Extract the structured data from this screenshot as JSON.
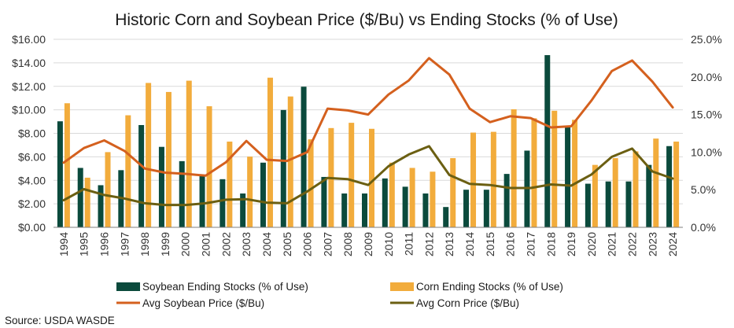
{
  "source": "Source: USDA WASDE",
  "colors": {
    "soy_stocks": "#0b4a3c",
    "corn_stocks": "#f2ac3c",
    "soy_price": "#d4601e",
    "corn_price": "#6b5f12",
    "grid": "#d9d9d9",
    "axis": "#7f7f7f"
  },
  "chart_data": {
    "type": "bar",
    "combo": "clustered bars on right axis with lines on left axis",
    "title": "Historic Corn and Soybean Price ($/Bu) vs Ending Stocks (% of Use)",
    "categories": [
      "1994",
      "1995",
      "1996",
      "1997",
      "1998",
      "1999",
      "2000",
      "2001",
      "2002",
      "2003",
      "2004",
      "2005",
      "2006",
      "2007",
      "2008",
      "2009",
      "2010",
      "2011",
      "2012",
      "2013",
      "2014",
      "2015",
      "2016",
      "2017",
      "2018",
      "2019",
      "2020",
      "2021",
      "2022",
      "2023",
      "2024"
    ],
    "left_axis": {
      "ylim": [
        0,
        16
      ],
      "ticks": [
        "$0.00",
        "$2.00",
        "$4.00",
        "$6.00",
        "$8.00",
        "$10.00",
        "$12.00",
        "$14.00",
        "$16.00"
      ],
      "tick_values": [
        0,
        2,
        4,
        6,
        8,
        10,
        12,
        14,
        16
      ]
    },
    "right_axis": {
      "ylim": [
        0,
        25
      ],
      "ticks": [
        "0.0%",
        "5.0%",
        "10.0%",
        "15.0%",
        "20.0%",
        "25.0%"
      ],
      "tick_values": [
        0,
        5,
        10,
        15,
        20,
        25
      ]
    },
    "grid": true,
    "legend_position": "bottom",
    "series": [
      {
        "name": "Soybean Ending Stocks (% of Use)",
        "type": "bar",
        "axis": "right",
        "color_key": "soy_stocks",
        "values": [
          14.1,
          7.9,
          5.6,
          7.6,
          13.6,
          10.7,
          8.8,
          6.9,
          6.4,
          4.5,
          8.6,
          15.6,
          18.7,
          6.7,
          4.5,
          4.5,
          6.5,
          5.4,
          4.5,
          2.7,
          5.0,
          5.0,
          7.1,
          10.2,
          22.9,
          13.3,
          5.8,
          6.1,
          6.1,
          8.3,
          10.8
        ]
      },
      {
        "name": "Corn Ending Stocks (% of Use)",
        "type": "bar",
        "axis": "right",
        "color_key": "corn_stocks",
        "values": [
          16.5,
          6.6,
          10.0,
          14.9,
          19.2,
          18.0,
          19.5,
          16.1,
          11.4,
          9.4,
          19.9,
          17.4,
          11.7,
          13.2,
          13.9,
          13.1,
          8.6,
          7.9,
          7.4,
          9.2,
          12.6,
          12.7,
          15.7,
          14.5,
          15.5,
          14.3,
          8.3,
          9.2,
          10.1,
          11.8,
          11.4
        ]
      },
      {
        "name": "Avg Soybean Price ($/Bu)",
        "type": "line",
        "axis": "left",
        "color_key": "soy_price",
        "values": [
          5.5,
          6.75,
          7.4,
          6.5,
          5.0,
          4.65,
          4.55,
          4.4,
          5.55,
          7.35,
          5.75,
          5.65,
          6.4,
          10.1,
          9.95,
          9.6,
          11.3,
          12.5,
          14.4,
          13.0,
          10.1,
          8.95,
          9.45,
          9.3,
          8.5,
          8.6,
          10.8,
          13.3,
          14.2,
          12.4,
          10.2
        ]
      },
      {
        "name": "Avg Corn Price ($/Bu)",
        "type": "line",
        "axis": "left",
        "color_key": "corn_price",
        "values": [
          2.3,
          3.25,
          2.75,
          2.45,
          2.05,
          1.9,
          1.9,
          2.05,
          2.35,
          2.4,
          2.1,
          2.05,
          3.05,
          4.2,
          4.1,
          3.6,
          5.2,
          6.2,
          6.9,
          4.45,
          3.7,
          3.6,
          3.35,
          3.35,
          3.65,
          3.55,
          4.5,
          6.0,
          6.7,
          4.75,
          4.15
        ]
      }
    ]
  }
}
